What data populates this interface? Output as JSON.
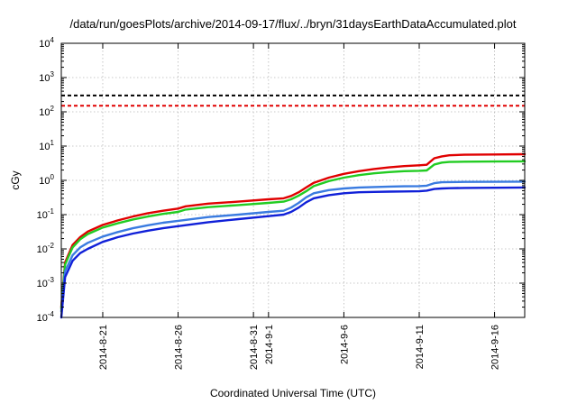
{
  "chart_data": {
    "type": "line",
    "title": "/data/run/goesPlots/archive/2014-09-17/flux/../bryn/31daysEarthDataAccumulated.plot",
    "xlabel": "Coordinated Universal Time (UTC)",
    "ylabel": "cGy",
    "yscale": "log",
    "xlim": [
      "2014-08-18T06:00",
      "2014-09-18T00:00"
    ],
    "ylim": [
      0.0001,
      10000
    ],
    "grid": true,
    "y_ticks": [
      {
        "value": 0.0001,
        "base": "10",
        "exp": "-4"
      },
      {
        "value": 0.001,
        "base": "10",
        "exp": "-3"
      },
      {
        "value": 0.01,
        "base": "10",
        "exp": "-2"
      },
      {
        "value": 0.1,
        "base": "10",
        "exp": "-1"
      },
      {
        "value": 1,
        "base": "10",
        "exp": "0"
      },
      {
        "value": 10,
        "base": "10",
        "exp": "1"
      },
      {
        "value": 100,
        "base": "10",
        "exp": "2"
      },
      {
        "value": 1000,
        "base": "10",
        "exp": "3"
      },
      {
        "value": 10000,
        "base": "10",
        "exp": "4"
      }
    ],
    "x_ticks": [
      {
        "value": "2014-08-21",
        "label": "2014-8-21"
      },
      {
        "value": "2014-08-26",
        "label": "2014-8-26"
      },
      {
        "value": "2014-08-31",
        "label": "2014-8-31"
      },
      {
        "value": "2014-09-01",
        "label": "2014-9-1"
      },
      {
        "value": "2014-09-06",
        "label": "2014-9-6"
      },
      {
        "value": "2014-09-11",
        "label": "2014-9-11"
      },
      {
        "value": "2014-09-16",
        "label": "2014-9-16"
      }
    ],
    "reference_lines": [
      {
        "value": 300,
        "color": "#000000",
        "style": "dashed"
      },
      {
        "value": 150,
        "color": "#e00000",
        "style": "dashed"
      }
    ],
    "series": [
      {
        "color": "#e00000",
        "x": [
          "2014-08-18T06:00",
          "2014-08-18T12:00",
          "2014-08-19T00:00",
          "2014-08-19T12:00",
          "2014-08-20T00:00",
          "2014-08-21T00:00",
          "2014-08-22T00:00",
          "2014-08-23T00:00",
          "2014-08-24T00:00",
          "2014-08-25T00:00",
          "2014-08-26T00:00",
          "2014-08-26T12:00",
          "2014-08-28T00:00",
          "2014-08-30T00:00",
          "2014-09-01T00:00",
          "2014-09-02T00:00",
          "2014-09-02T12:00",
          "2014-09-03T00:00",
          "2014-09-03T12:00",
          "2014-09-04T00:00",
          "2014-09-05T00:00",
          "2014-09-06T00:00",
          "2014-09-07T00:00",
          "2014-09-08T00:00",
          "2014-09-09T00:00",
          "2014-09-10T00:00",
          "2014-09-11T00:00",
          "2014-09-11T12:00",
          "2014-09-12T00:00",
          "2014-09-12T12:00",
          "2014-09-13T00:00",
          "2014-09-14T00:00",
          "2014-09-16T00:00",
          "2014-09-18T00:00"
        ],
        "values": [
          0.0002,
          0.004,
          0.013,
          0.022,
          0.032,
          0.05,
          0.068,
          0.088,
          0.11,
          0.13,
          0.15,
          0.175,
          0.21,
          0.24,
          0.28,
          0.3,
          0.35,
          0.45,
          0.62,
          0.85,
          1.2,
          1.55,
          1.85,
          2.15,
          2.4,
          2.6,
          2.75,
          2.85,
          4.4,
          5.0,
          5.4,
          5.6,
          5.7,
          5.8
        ]
      },
      {
        "color": "#22cc22",
        "x": [
          "2014-08-18T06:00",
          "2014-08-18T12:00",
          "2014-08-19T00:00",
          "2014-08-19T12:00",
          "2014-08-20T00:00",
          "2014-08-21T00:00",
          "2014-08-22T00:00",
          "2014-08-23T00:00",
          "2014-08-24T00:00",
          "2014-08-25T00:00",
          "2014-08-26T00:00",
          "2014-08-26T12:00",
          "2014-08-28T00:00",
          "2014-08-30T00:00",
          "2014-09-01T00:00",
          "2014-09-02T00:00",
          "2014-09-02T12:00",
          "2014-09-03T00:00",
          "2014-09-03T12:00",
          "2014-09-04T00:00",
          "2014-09-05T00:00",
          "2014-09-06T00:00",
          "2014-09-07T00:00",
          "2014-09-08T00:00",
          "2014-09-09T00:00",
          "2014-09-10T00:00",
          "2014-09-11T00:00",
          "2014-09-11T12:00",
          "2014-09-12T00:00",
          "2014-09-12T12:00",
          "2014-09-13T00:00",
          "2014-09-14T00:00",
          "2014-09-16T00:00",
          "2014-09-18T00:00"
        ],
        "values": [
          0.00018,
          0.0035,
          0.011,
          0.019,
          0.027,
          0.042,
          0.056,
          0.072,
          0.088,
          0.105,
          0.12,
          0.14,
          0.165,
          0.19,
          0.22,
          0.24,
          0.28,
          0.36,
          0.48,
          0.68,
          0.95,
          1.2,
          1.42,
          1.6,
          1.75,
          1.85,
          1.9,
          1.95,
          2.9,
          3.3,
          3.45,
          3.5,
          3.55,
          3.6
        ]
      },
      {
        "color": "#3a7be0",
        "x": [
          "2014-08-18T06:00",
          "2014-08-18T12:00",
          "2014-08-19T00:00",
          "2014-08-19T12:00",
          "2014-08-20T00:00",
          "2014-08-21T00:00",
          "2014-08-22T00:00",
          "2014-08-23T00:00",
          "2014-08-24T00:00",
          "2014-08-25T00:00",
          "2014-08-26T00:00",
          "2014-08-28T00:00",
          "2014-08-30T00:00",
          "2014-09-01T00:00",
          "2014-09-02T00:00",
          "2014-09-02T12:00",
          "2014-09-03T00:00",
          "2014-09-03T12:00",
          "2014-09-04T00:00",
          "2014-09-05T00:00",
          "2014-09-06T00:00",
          "2014-09-07T00:00",
          "2014-09-08T00:00",
          "2014-09-09T00:00",
          "2014-09-10T00:00",
          "2014-09-11T00:00",
          "2014-09-11T12:00",
          "2014-09-12T00:00",
          "2014-09-12T12:00",
          "2014-09-13T00:00",
          "2014-09-14T00:00",
          "2014-09-16T00:00",
          "2014-09-18T00:00"
        ],
        "values": [
          0.00015,
          0.0022,
          0.0065,
          0.011,
          0.015,
          0.023,
          0.031,
          0.04,
          0.049,
          0.058,
          0.066,
          0.085,
          0.1,
          0.12,
          0.13,
          0.16,
          0.22,
          0.32,
          0.42,
          0.52,
          0.58,
          0.62,
          0.64,
          0.66,
          0.67,
          0.68,
          0.7,
          0.83,
          0.88,
          0.89,
          0.9,
          0.91,
          0.92
        ]
      },
      {
        "color": "#1020d8",
        "x": [
          "2014-08-18T06:00",
          "2014-08-18T12:00",
          "2014-08-19T00:00",
          "2014-08-19T12:00",
          "2014-08-20T00:00",
          "2014-08-21T00:00",
          "2014-08-22T00:00",
          "2014-08-23T00:00",
          "2014-08-24T00:00",
          "2014-08-25T00:00",
          "2014-08-26T00:00",
          "2014-08-28T00:00",
          "2014-08-30T00:00",
          "2014-09-01T00:00",
          "2014-09-02T00:00",
          "2014-09-02T12:00",
          "2014-09-03T00:00",
          "2014-09-03T12:00",
          "2014-09-04T00:00",
          "2014-09-05T00:00",
          "2014-09-06T00:00",
          "2014-09-07T00:00",
          "2014-09-08T00:00",
          "2014-09-09T00:00",
          "2014-09-10T00:00",
          "2014-09-11T00:00",
          "2014-09-11T12:00",
          "2014-09-12T00:00",
          "2014-09-12T12:00",
          "2014-09-13T00:00",
          "2014-09-14T00:00",
          "2014-09-16T00:00",
          "2014-09-18T00:00"
        ],
        "values": [
          0.0001,
          0.0015,
          0.0045,
          0.0075,
          0.01,
          0.016,
          0.022,
          0.028,
          0.034,
          0.04,
          0.046,
          0.06,
          0.074,
          0.09,
          0.1,
          0.12,
          0.16,
          0.23,
          0.3,
          0.37,
          0.42,
          0.45,
          0.46,
          0.47,
          0.475,
          0.48,
          0.5,
          0.56,
          0.58,
          0.59,
          0.6,
          0.61,
          0.62
        ]
      }
    ]
  }
}
